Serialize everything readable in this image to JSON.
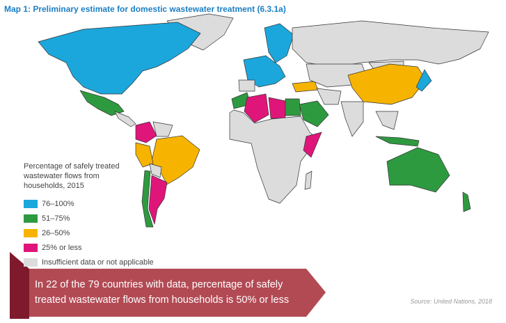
{
  "title": "Map 1: Preliminary estimate for domestic wastewater treatment (6.3.1a)",
  "legend": {
    "title": "Percentage of safely treated wastewater flows from households, 2015",
    "items": [
      {
        "label": "76–100%",
        "color": "#1ba7dc"
      },
      {
        "label": "51–75%",
        "color": "#2e9a3f"
      },
      {
        "label": "26–50%",
        "color": "#f6b400"
      },
      {
        "label": "25% or less",
        "color": "#e0157a"
      },
      {
        "label": "Insufficient data or not applicable",
        "color": "#dcdcdc"
      }
    ]
  },
  "callout": "In 22 of the 79 countries with data, percentage of safely treated wastewater flows from households is 50% or less",
  "source": "Source: United Nations, 2018"
}
